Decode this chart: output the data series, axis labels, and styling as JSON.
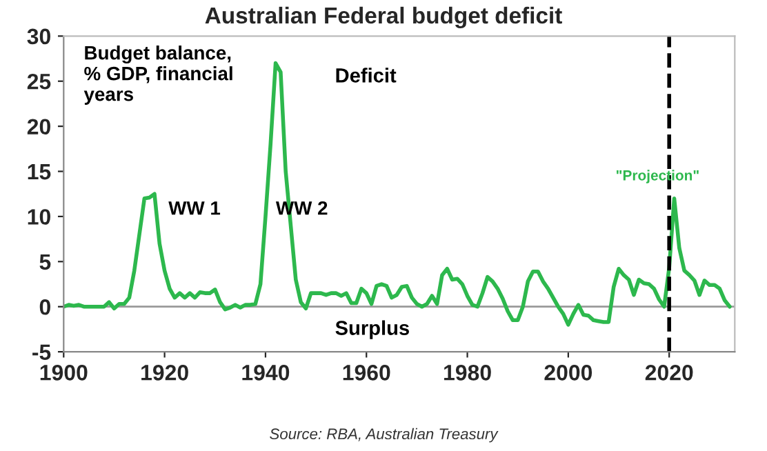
{
  "chart_data": {
    "type": "line",
    "title": "Australian Federal budget deficit",
    "x": [
      1900,
      1901,
      1902,
      1903,
      1904,
      1908,
      1909,
      1910,
      1911,
      1912,
      1913,
      1914,
      1915,
      1916,
      1917,
      1918,
      1919,
      1920,
      1921,
      1922,
      1923,
      1924,
      1925,
      1926,
      1927,
      1928,
      1929,
      1930,
      1931,
      1932,
      1933,
      1934,
      1935,
      1936,
      1937,
      1938,
      1939,
      1940,
      1941,
      1942,
      1943,
      1944,
      1945,
      1946,
      1947,
      1948,
      1949,
      1950,
      1951,
      1952,
      1953,
      1954,
      1955,
      1956,
      1957,
      1958,
      1959,
      1960,
      1961,
      1962,
      1963,
      1964,
      1965,
      1966,
      1967,
      1968,
      1969,
      1970,
      1971,
      1972,
      1973,
      1974,
      1975,
      1976,
      1977,
      1978,
      1979,
      1980,
      1981,
      1982,
      1983,
      1984,
      1985,
      1986,
      1987,
      1988,
      1989,
      1990,
      1991,
      1992,
      1993,
      1994,
      1995,
      1996,
      1997,
      1998,
      1999,
      2000,
      2001,
      2002,
      2003,
      2004,
      2005,
      2006,
      2007,
      2008,
      2009,
      2010,
      2011,
      2012,
      2013,
      2014,
      2015,
      2016,
      2017,
      2018,
      2019,
      2020,
      2021,
      2022,
      2023,
      2024,
      2025,
      2026,
      2027,
      2028,
      2029,
      2030,
      2031,
      2032
    ],
    "series": [
      {
        "color": "#2db84d",
        "values": [
          0,
          0.2,
          0.1,
          0.2,
          0,
          0,
          0.5,
          -0.2,
          0.3,
          0.3,
          1,
          4,
          8,
          12,
          12.1,
          12.5,
          7,
          4,
          2,
          1,
          1.5,
          1,
          1.5,
          1,
          1.6,
          1.5,
          1.5,
          1.9,
          0.5,
          -0.3,
          -0.1,
          0.2,
          -0.1,
          0.2,
          0.2,
          0.3,
          2.5,
          10,
          18,
          27,
          26,
          15,
          9,
          3,
          0.5,
          -0.2,
          1.5,
          1.5,
          1.5,
          1.3,
          1.5,
          1.5,
          1.2,
          1.5,
          0.4,
          0.4,
          2,
          1.5,
          0.3,
          2.3,
          2.5,
          2.3,
          1,
          1.3,
          2.2,
          2.3,
          1,
          0.3,
          0,
          0.3,
          1.2,
          0.3,
          3.5,
          4.2,
          3,
          3.1,
          2.5,
          1.2,
          0.2,
          0,
          1.5,
          3.3,
          2.8,
          2,
          0.9,
          -0.5,
          -1.5,
          -1.5,
          0,
          2.8,
          3.9,
          3.9,
          2.8,
          2,
          1,
          0,
          -0.8,
          -2,
          -0.8,
          0.2,
          -0.9,
          -1,
          -1.5,
          -1.6,
          -1.7,
          -1.7,
          2.2,
          4.2,
          3.5,
          3,
          1.3,
          3,
          2.6,
          2.5,
          2,
          0.8,
          0,
          4.3,
          12,
          6.5,
          4,
          3.5,
          2.9,
          1.3,
          2.9,
          2.4,
          2.4,
          2,
          0.7,
          0
        ]
      }
    ],
    "xlim": [
      1900,
      2033
    ],
    "ylim": [
      -5,
      30
    ],
    "xticks": [
      1900,
      1920,
      1940,
      1960,
      1980,
      2000,
      2020
    ],
    "yticks": [
      -5,
      0,
      5,
      10,
      15,
      20,
      25,
      30
    ],
    "ref_lines": [
      {
        "axis": "x",
        "value": 2020,
        "color": "#000000",
        "line_style": "dashed"
      }
    ],
    "annotations": [
      "Budget balance,\n% GDP, financial\nyears",
      "WW 1",
      "WW 2",
      "Deficit",
      "Surplus",
      "\"Projection\"",
      "Source: RBA, Australian Treasury"
    ],
    "grid": false,
    "legend": false,
    "marker": "none",
    "line_style": "solid"
  }
}
